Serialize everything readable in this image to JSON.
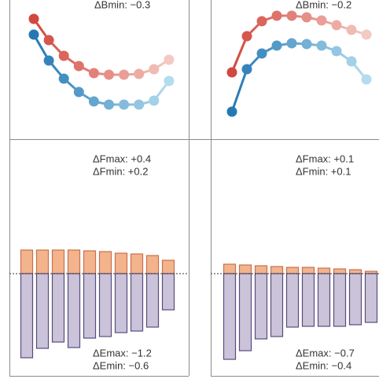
{
  "chart_data": [
    {
      "type": "line",
      "annotations": [
        "ΔBmin: −0.3"
      ],
      "categories": [
        null,
        null,
        null,
        null,
        null,
        null,
        null,
        null,
        null,
        null
      ],
      "ylim": [
        0,
        177
      ],
      "series": [
        {
          "colors": [
            "#d2483f",
            "#f4c9c1"
          ],
          "values": [
            153,
            126,
            106,
            93,
            84,
            82,
            82,
            83,
            89,
            101
          ]
        },
        {
          "colors": [
            "#2479b4",
            "#b3dcef"
          ],
          "values": [
            133,
            100,
            77,
            60,
            48,
            44,
            44,
            44,
            49,
            74
          ]
        }
      ]
    },
    {
      "type": "line",
      "annotations": [
        "ΔBmin: −0.2"
      ],
      "categories": [
        null,
        null,
        null,
        null,
        null,
        null,
        null,
        null,
        null,
        null
      ],
      "ylim": [
        0,
        177
      ],
      "series": [
        {
          "colors": [
            "#d2483f",
            "#f4c9c1"
          ],
          "values": [
            85,
            131,
            150,
            157,
            157,
            155,
            151,
            145,
            139,
            133
          ]
        },
        {
          "colors": [
            "#2479b4",
            "#b3dcef"
          ],
          "values": [
            35,
            89,
            109,
            119,
            122,
            121,
            119,
            112,
            99,
            76
          ]
        }
      ]
    },
    {
      "type": "bar",
      "annotations": [
        "ΔFmax: +0.4",
        "ΔFmin: +0.2",
        "ΔEmax: −1.2",
        "ΔEmin: −0.6"
      ],
      "categories": [
        null,
        null,
        null,
        null,
        null,
        null,
        null,
        null,
        null,
        null
      ],
      "ylim": [
        -134,
        171
      ],
      "series": [
        {
          "color": "#f3b48d",
          "stroke": "#c9704b",
          "values": [
            30,
            30,
            30,
            30,
            29,
            28,
            26,
            25,
            23,
            17
          ]
        },
        {
          "color": "#cbc3da",
          "stroke": "#584d7e",
          "values": [
            -107,
            -95,
            -87,
            -94,
            -82,
            -80,
            -75,
            -73,
            -68,
            -46
          ]
        }
      ]
    },
    {
      "type": "bar",
      "annotations": [
        "ΔFmax: +0.1",
        "ΔFmin: +0.1",
        "ΔEmax: −0.7",
        "ΔEmin: −0.4"
      ],
      "categories": [
        null,
        null,
        null,
        null,
        null,
        null,
        null,
        null,
        null,
        null
      ],
      "ylim": [
        -134,
        171
      ],
      "series": [
        {
          "color": "#f3b48d",
          "stroke": "#c9704b",
          "values": [
            12,
            11,
            10,
            9,
            8,
            8,
            7,
            6,
            5,
            3
          ]
        },
        {
          "color": "#cbc3da",
          "stroke": "#584d7e",
          "values": [
            -109,
            -98,
            -83,
            -80,
            -68,
            -67,
            -67,
            -67,
            -65,
            -62
          ]
        }
      ]
    }
  ]
}
